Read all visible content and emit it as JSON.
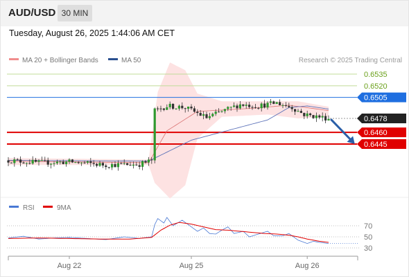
{
  "header": {
    "symbol": "AUD/USD",
    "timeframe": "30 MIN",
    "timestamp": "Tuesday, August 26, 2025 1:44:06 AM CET",
    "bg_color": "#f3f3f3"
  },
  "legend": {
    "items": [
      {
        "label": "MA 20 + Bollinger Bands",
        "color": "#f08c8c"
      },
      {
        "label": "MA 50",
        "color": "#2a4f8f"
      }
    ],
    "copyright": "Research © 2025 Trading Central"
  },
  "rsi_legend": {
    "items": [
      {
        "label": "RSI",
        "color": "#4a79d4"
      },
      {
        "label": "9MA",
        "color": "#e00000"
      }
    ]
  },
  "chart_data": [
    {
      "type": "candlestick",
      "title": "",
      "x_tick_labels": [
        "Aug 22",
        "Aug 25",
        "Aug 26"
      ],
      "x_tick_index": [
        20,
        60,
        98
      ],
      "n_bars": 106,
      "levels": [
        {
          "value": 0.6535,
          "label": "0.6535",
          "kind": "resistance",
          "color": "#6aa01a",
          "line": "#c0dc98"
        },
        {
          "value": 0.652,
          "label": "0.6520",
          "kind": "resistance",
          "color": "#6aa01a",
          "line": "#c0dc98"
        },
        {
          "value": 0.6505,
          "label": "0.6505",
          "kind": "pivot",
          "color": "#1f6fe0",
          "line": "#1f6fe0"
        },
        {
          "value": 0.6478,
          "label": "0.6478",
          "kind": "last",
          "color": "#222222",
          "line": "#999999"
        },
        {
          "value": 0.646,
          "label": "0.6460",
          "kind": "support",
          "color": "#e00000",
          "line": "#e00000"
        },
        {
          "value": 0.6445,
          "label": "0.6445",
          "kind": "support",
          "color": "#e00000",
          "line": "#e00000"
        }
      ],
      "close_anchors": [
        [
          0,
          0.6424
        ],
        [
          10,
          0.6421
        ],
        [
          20,
          0.6422
        ],
        [
          32,
          0.6418
        ],
        [
          43,
          0.6419
        ],
        [
          47,
          0.6424
        ],
        [
          48,
          0.6488
        ],
        [
          52,
          0.6494
        ],
        [
          58,
          0.6492
        ],
        [
          65,
          0.6479
        ],
        [
          72,
          0.649
        ],
        [
          76,
          0.6496
        ],
        [
          82,
          0.6494
        ],
        [
          88,
          0.6498
        ],
        [
          93,
          0.6492
        ],
        [
          97,
          0.6483
        ],
        [
          100,
          0.6481
        ],
        [
          105,
          0.6478
        ]
      ],
      "ma50_anchors": [
        [
          0,
          0.6424
        ],
        [
          46,
          0.6423
        ],
        [
          60,
          0.645
        ],
        [
          85,
          0.6476
        ],
        [
          92,
          0.6492
        ],
        [
          98,
          0.6494
        ],
        [
          105,
          0.649
        ]
      ],
      "ma20_anchors": [
        [
          0,
          0.6423
        ],
        [
          46,
          0.6421
        ],
        [
          52,
          0.6462
        ],
        [
          62,
          0.6487
        ],
        [
          80,
          0.6491
        ],
        [
          92,
          0.6495
        ],
        [
          105,
          0.6488
        ]
      ],
      "bb_upper_anchors": [
        [
          0,
          0.6427
        ],
        [
          46,
          0.6425
        ],
        [
          49,
          0.6512
        ],
        [
          53,
          0.655
        ],
        [
          58,
          0.654
        ],
        [
          62,
          0.651
        ],
        [
          70,
          0.65
        ],
        [
          85,
          0.65
        ],
        [
          95,
          0.65
        ],
        [
          105,
          0.6493
        ]
      ],
      "bb_lower_anchors": [
        [
          0,
          0.6418
        ],
        [
          46,
          0.6418
        ],
        [
          48,
          0.6395
        ],
        [
          53,
          0.6375
        ],
        [
          58,
          0.6392
        ],
        [
          62,
          0.6452
        ],
        [
          70,
          0.648
        ],
        [
          85,
          0.6483
        ],
        [
          95,
          0.6478
        ],
        [
          105,
          0.648
        ]
      ],
      "forecast": {
        "from": 0.6478,
        "to": 0.6445,
        "direction": "down",
        "color": "#2a5fa8"
      }
    },
    {
      "type": "line",
      "title": "RSI",
      "y_ticks": [
        70,
        50,
        30
      ],
      "ylim": [
        15,
        90
      ],
      "series": [
        {
          "name": "RSI",
          "color": "#4a79d4",
          "anchors": [
            [
              0,
              48
            ],
            [
              5,
              51
            ],
            [
              10,
              46
            ],
            [
              15,
              48
            ],
            [
              20,
              49
            ],
            [
              26,
              47
            ],
            [
              32,
              45
            ],
            [
              38,
              50
            ],
            [
              43,
              47
            ],
            [
              47,
              50
            ],
            [
              48,
              72
            ],
            [
              49,
              83
            ],
            [
              51,
              75
            ],
            [
              52,
              85
            ],
            [
              54,
              70
            ],
            [
              57,
              80
            ],
            [
              60,
              68
            ],
            [
              62,
              60
            ],
            [
              64,
              66
            ],
            [
              66,
              56
            ],
            [
              68,
              55
            ],
            [
              70,
              62
            ],
            [
              72,
              68
            ],
            [
              74,
              56
            ],
            [
              77,
              60
            ],
            [
              79,
              50
            ],
            [
              82,
              55
            ],
            [
              85,
              60
            ],
            [
              87,
              52
            ],
            [
              90,
              52
            ],
            [
              92,
              56
            ],
            [
              95,
              44
            ],
            [
              98,
              38
            ],
            [
              100,
              42
            ],
            [
              102,
              40
            ],
            [
              105,
              38
            ]
          ]
        },
        {
          "name": "9MA",
          "color": "#e00000",
          "anchors": [
            [
              0,
              47
            ],
            [
              10,
              48
            ],
            [
              20,
              47
            ],
            [
              30,
              46
            ],
            [
              40,
              46
            ],
            [
              47,
              49
            ],
            [
              50,
              62
            ],
            [
              53,
              71
            ],
            [
              56,
              76
            ],
            [
              60,
              73
            ],
            [
              64,
              68
            ],
            [
              68,
              63
            ],
            [
              72,
              62
            ],
            [
              76,
              60
            ],
            [
              80,
              58
            ],
            [
              84,
              56
            ],
            [
              88,
              55
            ],
            [
              92,
              53
            ],
            [
              95,
              50
            ],
            [
              98,
              46
            ],
            [
              102,
              42
            ],
            [
              105,
              40
            ]
          ]
        }
      ]
    }
  ]
}
